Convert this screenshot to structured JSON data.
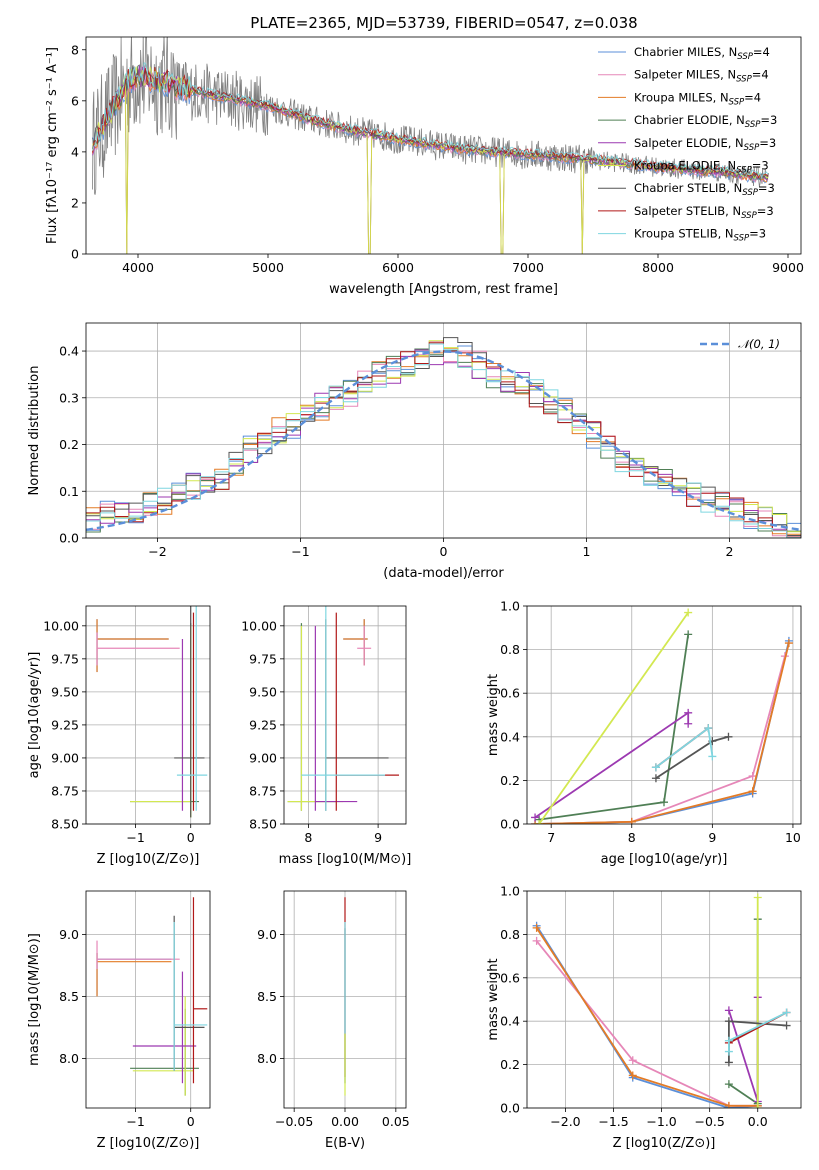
{
  "title": "PLATE=2365, MJD=53739, FIBERID=0547, z=0.038",
  "colors": {
    "chabrier_miles": "#5b8fd9",
    "salpeter_miles": "#e687b8",
    "kroupa_miles": "#e37b26",
    "chabrier_elodie": "#4f7f55",
    "salpeter_elodie": "#9c39b1",
    "kroupa_elodie": "#d3e851",
    "chabrier_stelib": "#555555",
    "salpeter_stelib": "#b01818",
    "kroupa_stelib": "#7fd6e0",
    "data": "#808080",
    "gauss": "#5b8fd9"
  },
  "legend": [
    {
      "key": "chabrier_miles",
      "text": "Chabrier MILES, N",
      "sub": "SSP",
      "suf": "=4"
    },
    {
      "key": "salpeter_miles",
      "text": "Salpeter MILES, N",
      "sub": "SSP",
      "suf": "=4"
    },
    {
      "key": "kroupa_miles",
      "text": "Kroupa MILES, N",
      "sub": "SSP",
      "suf": "=4"
    },
    {
      "key": "chabrier_elodie",
      "text": "Chabrier ELODIE, N",
      "sub": "SSP",
      "suf": "=3"
    },
    {
      "key": "salpeter_elodie",
      "text": "Salpeter ELODIE, N",
      "sub": "SSP",
      "suf": "=3"
    },
    {
      "key": "kroupa_elodie",
      "text": "Kroupa ELODIE, N",
      "sub": "SSP",
      "suf": "=3"
    },
    {
      "key": "chabrier_stelib",
      "text": "Chabrier STELIB, N",
      "sub": "SSP",
      "suf": "=3"
    },
    {
      "key": "salpeter_stelib",
      "text": "Salpeter STELIB, N",
      "sub": "SSP",
      "suf": "=3"
    },
    {
      "key": "kroupa_stelib",
      "text": "Kroupa STELIB, N",
      "sub": "SSP",
      "suf": "=3"
    }
  ],
  "chart_data": [
    {
      "id": "spectrum",
      "type": "line",
      "xlabel": "wavelength [Angstrom, rest frame]",
      "ylabel": "Flux [fλ10⁻¹⁷ erg cm⁻² s⁻¹ A⁻¹]",
      "xlim": [
        3600,
        9100
      ],
      "ylim": [
        0,
        8.5
      ],
      "xticks": [
        4000,
        5000,
        6000,
        7000,
        8000,
        9000
      ],
      "yticks": [
        0,
        2,
        4,
        6,
        8
      ],
      "continuum": [
        [
          3650,
          4.3
        ],
        [
          3800,
          5.6
        ],
        [
          3900,
          6.6
        ],
        [
          4000,
          7.0
        ],
        [
          4200,
          6.7
        ],
        [
          4500,
          6.3
        ],
        [
          4800,
          6.0
        ],
        [
          5000,
          5.8
        ],
        [
          5300,
          5.3
        ],
        [
          5600,
          4.9
        ],
        [
          6000,
          4.5
        ],
        [
          6500,
          4.1
        ],
        [
          7000,
          3.9
        ],
        [
          7500,
          3.7
        ],
        [
          8000,
          3.4
        ],
        [
          8500,
          3.2
        ],
        [
          8800,
          3.0
        ]
      ],
      "dropouts": [
        3910,
        5780,
        6800,
        7420
      ]
    },
    {
      "id": "residuals",
      "type": "step",
      "xlabel": "(data-model)/error",
      "ylabel": "Normed distribution",
      "xlim": [
        -2.5,
        2.5
      ],
      "ylim": [
        0,
        0.46
      ],
      "xticks": [
        -2,
        -1,
        0,
        1,
        2
      ],
      "yticks": [
        0,
        0.1,
        0.2,
        0.3,
        0.4
      ],
      "bin_width": 0.1,
      "hist": [
        0.04,
        0.05,
        0.06,
        0.06,
        0.07,
        0.08,
        0.09,
        0.11,
        0.12,
        0.13,
        0.16,
        0.19,
        0.21,
        0.23,
        0.24,
        0.26,
        0.28,
        0.3,
        0.31,
        0.33,
        0.35,
        0.36,
        0.37,
        0.39,
        0.4,
        0.4,
        0.39,
        0.37,
        0.35,
        0.34,
        0.33,
        0.31,
        0.29,
        0.27,
        0.25,
        0.22,
        0.19,
        0.17,
        0.15,
        0.13,
        0.12,
        0.1,
        0.09,
        0.08,
        0.07,
        0.06,
        0.05,
        0.04,
        0.03,
        0.02
      ],
      "legend": "𝒩(0, 1)"
    },
    {
      "id": "age_vs_Z",
      "type": "errorbar",
      "xlabel": "Z [log10(Z/Z⊙)]",
      "ylabel": "age  [log10(age/yr)]",
      "xlim": [
        -1.9,
        0.35
      ],
      "ylim": [
        8.5,
        10.15
      ],
      "xticks": [
        -1,
        0
      ],
      "yticks": [
        8.5,
        8.75,
        9.0,
        9.25,
        9.5,
        9.75,
        10.0
      ],
      "points": [
        {
          "key": "chabrier_miles",
          "x": -1.7,
          "xlo": -1.7,
          "xhi": -0.4,
          "y": 9.9,
          "ylo": 9.65,
          "yhi": 10.05
        },
        {
          "key": "kroupa_miles",
          "x": -1.7,
          "xlo": -1.7,
          "xhi": -0.4,
          "y": 9.9,
          "ylo": 9.65,
          "yhi": 10.05
        },
        {
          "key": "salpeter_miles",
          "x": -1.7,
          "xlo": -1.7,
          "xhi": -0.2,
          "y": 9.83,
          "ylo": 9.7,
          "yhi": 9.95
        },
        {
          "key": "chabrier_elodie",
          "x": 0.0,
          "xlo": -1.1,
          "xhi": 0.15,
          "y": 8.67,
          "ylo": 8.55,
          "yhi": 10.02
        },
        {
          "key": "kroupa_elodie",
          "x": 0.0,
          "xlo": -1.1,
          "xhi": 0.0,
          "y": 8.67,
          "ylo": 8.55,
          "yhi": 10.0
        },
        {
          "key": "salpeter_elodie",
          "x": -0.15,
          "xlo": -0.15,
          "xhi": -0.15,
          "y": 9.2,
          "ylo": 8.6,
          "yhi": 9.9
        },
        {
          "key": "chabrier_stelib",
          "x": 0.0,
          "xlo": -0.3,
          "xhi": 0.25,
          "y": 9.0,
          "ylo": 8.55,
          "yhi": 10.15
        },
        {
          "key": "salpeter_stelib",
          "x": 0.05,
          "xlo": 0.05,
          "xhi": 0.05,
          "y": 9.3,
          "ylo": 8.6,
          "yhi": 10.1
        },
        {
          "key": "kroupa_stelib",
          "x": 0.1,
          "xlo": -0.25,
          "xhi": 0.3,
          "y": 8.87,
          "ylo": 8.6,
          "yhi": 10.15
        }
      ]
    },
    {
      "id": "age_vs_mass",
      "type": "errorbar",
      "xlabel": "mass [log10(M/M⊙)]",
      "ylabel": "",
      "xlim": [
        7.65,
        9.4
      ],
      "ylim": [
        8.5,
        10.15
      ],
      "xticks": [
        8,
        9
      ],
      "yticks": [
        8.5,
        8.75,
        9.0,
        9.25,
        9.5,
        9.75,
        10.0
      ],
      "points": [
        {
          "key": "chabrier_miles",
          "x": 8.8,
          "xlo": 8.5,
          "xhi": 8.85,
          "y": 9.9,
          "ylo": 9.7,
          "yhi": 10.05
        },
        {
          "key": "kroupa_miles",
          "x": 8.8,
          "xlo": 8.5,
          "xhi": 8.85,
          "y": 9.9,
          "ylo": 9.7,
          "yhi": 10.05
        },
        {
          "key": "salpeter_miles",
          "x": 8.8,
          "xlo": 8.7,
          "xhi": 8.9,
          "y": 9.83,
          "ylo": 9.7,
          "yhi": 10.0
        },
        {
          "key": "chabrier_elodie",
          "x": 7.9,
          "xlo": 7.7,
          "xhi": 8.4,
          "y": 8.67,
          "ylo": 8.6,
          "yhi": 10.02
        },
        {
          "key": "kroupa_elodie",
          "x": 7.9,
          "xlo": 7.7,
          "xhi": 8.5,
          "y": 8.67,
          "ylo": 8.6,
          "yhi": 10.0
        },
        {
          "key": "salpeter_elodie",
          "x": 8.1,
          "xlo": 8.1,
          "xhi": 8.7,
          "y": 8.67,
          "ylo": 8.6,
          "yhi": 10.0
        },
        {
          "key": "chabrier_stelib",
          "x": 8.25,
          "xlo": 8.25,
          "xhi": 9.15,
          "y": 9.0,
          "ylo": 8.6,
          "yhi": 10.05
        },
        {
          "key": "salpeter_stelib",
          "x": 8.4,
          "xlo": 8.4,
          "xhi": 9.3,
          "y": 8.87,
          "ylo": 8.6,
          "yhi": 10.1
        },
        {
          "key": "kroupa_stelib",
          "x": 8.25,
          "xlo": 7.9,
          "xhi": 9.1,
          "y": 8.87,
          "ylo": 8.6,
          "yhi": 10.15
        }
      ]
    },
    {
      "id": "weight_vs_age",
      "type": "line",
      "xlabel": "age  [log10(age/yr)]",
      "ylabel": "mass weight",
      "xlim": [
        6.7,
        10.1
      ],
      "ylim": [
        0,
        1.0
      ],
      "xticks": [
        7,
        8,
        9,
        10
      ],
      "yticks": [
        0.0,
        0.2,
        0.4,
        0.6,
        0.8,
        1.0
      ],
      "series": [
        {
          "key": "chabrier_miles",
          "x": [
            6.8,
            8.0,
            9.5,
            9.95
          ],
          "y": [
            0.0,
            0.01,
            0.14,
            0.84
          ]
        },
        {
          "key": "salpeter_miles",
          "x": [
            6.8,
            8.0,
            9.5,
            9.9
          ],
          "y": [
            0.0,
            0.01,
            0.22,
            0.77
          ]
        },
        {
          "key": "kroupa_miles",
          "x": [
            6.8,
            8.0,
            9.5,
            9.95
          ],
          "y": [
            0.0,
            0.01,
            0.15,
            0.83
          ]
        },
        {
          "key": "chabrier_elodie",
          "x": [
            6.85,
            8.4,
            8.7
          ],
          "y": [
            0.02,
            0.1,
            0.87
          ]
        },
        {
          "key": "salpeter_elodie",
          "x": [
            6.8,
            8.7,
            8.7
          ],
          "y": [
            0.03,
            0.51,
            0.46
          ]
        },
        {
          "key": "kroupa_elodie",
          "x": [
            6.85,
            8.7
          ],
          "y": [
            0.0,
            0.97
          ]
        },
        {
          "key": "chabrier_stelib",
          "x": [
            8.3,
            9.0,
            9.2
          ],
          "y": [
            0.21,
            0.38,
            0.4
          ]
        },
        {
          "key": "salpeter_stelib",
          "x": [
            8.3,
            8.95
          ],
          "y": [
            0.26,
            0.44
          ]
        },
        {
          "key": "kroupa_stelib",
          "x": [
            8.3,
            8.95,
            9.0
          ],
          "y": [
            0.26,
            0.44,
            0.31
          ]
        }
      ]
    },
    {
      "id": "mass_vs_Z",
      "type": "errorbar",
      "xlabel": "Z [log10(Z/Z⊙)]",
      "ylabel": "mass [log10(M/M⊙)]",
      "xlim": [
        -1.9,
        0.35
      ],
      "ylim": [
        7.6,
        9.35
      ],
      "xticks": [
        -1,
        0
      ],
      "yticks": [
        8.0,
        8.5,
        9.0
      ],
      "points": [
        {
          "key": "chabrier_miles",
          "x": -1.7,
          "xlo": -1.7,
          "xhi": -0.35,
          "y": 8.8,
          "ylo": 8.5,
          "yhi": 8.85
        },
        {
          "key": "kroupa_miles",
          "x": -1.7,
          "xlo": -1.7,
          "xhi": -0.35,
          "y": 8.78,
          "ylo": 8.5,
          "yhi": 8.85
        },
        {
          "key": "salpeter_miles",
          "x": -1.7,
          "xlo": -1.7,
          "xhi": -0.2,
          "y": 8.8,
          "ylo": 8.72,
          "yhi": 8.95
        },
        {
          "key": "chabrier_elodie",
          "x": -0.1,
          "xlo": -1.1,
          "xhi": 0.15,
          "y": 7.92,
          "ylo": 7.7,
          "yhi": 8.4
        },
        {
          "key": "kroupa_elodie",
          "x": -0.1,
          "xlo": -1.05,
          "xhi": 0.05,
          "y": 7.9,
          "ylo": 7.7,
          "yhi": 8.5
        },
        {
          "key": "salpeter_elodie",
          "x": -0.15,
          "xlo": -1.05,
          "xhi": 0.1,
          "y": 8.1,
          "ylo": 7.8,
          "yhi": 8.7
        },
        {
          "key": "chabrier_stelib",
          "x": -0.3,
          "xlo": -0.3,
          "xhi": 0.25,
          "y": 8.25,
          "ylo": 7.9,
          "yhi": 9.15
        },
        {
          "key": "salpeter_stelib",
          "x": 0.05,
          "xlo": 0.05,
          "xhi": 0.3,
          "y": 8.4,
          "ylo": 7.8,
          "yhi": 9.3
        },
        {
          "key": "kroupa_stelib",
          "x": -0.3,
          "xlo": -0.3,
          "xhi": 0.3,
          "y": 8.27,
          "ylo": 7.9,
          "yhi": 9.1
        }
      ]
    },
    {
      "id": "mass_vs_ebv",
      "type": "errorbar",
      "xlabel": "E(B-V)",
      "ylabel": "",
      "xlim": [
        -0.06,
        0.06
      ],
      "ylim": [
        7.6,
        9.35
      ],
      "xticks": [
        -0.05,
        0.0,
        0.05
      ],
      "yticks": [
        8.0,
        8.5,
        9.0
      ],
      "points": [
        {
          "key": "salpeter_stelib",
          "x": 0.0,
          "xlo": 0.0,
          "xhi": 0.0,
          "y": 8.6,
          "ylo": 7.85,
          "yhi": 9.3
        },
        {
          "key": "chabrier_stelib",
          "x": 0.0,
          "xlo": 0.0,
          "xhi": 0.0,
          "y": 8.4,
          "ylo": 7.8,
          "yhi": 9.05
        },
        {
          "key": "kroupa_stelib",
          "x": 0.0,
          "xlo": 0.0,
          "xhi": 0.0,
          "y": 8.5,
          "ylo": 7.8,
          "yhi": 9.1
        },
        {
          "key": "kroupa_elodie",
          "x": 0.0,
          "xlo": 0.0,
          "xhi": 0.0,
          "y": 7.9,
          "ylo": 7.7,
          "yhi": 8.2
        }
      ]
    },
    {
      "id": "weight_vs_Z",
      "type": "line",
      "xlabel": "Z [log10(Z/Z⊙)]",
      "ylabel": "mass weight",
      "xlim": [
        -2.4,
        0.45
      ],
      "ylim": [
        0,
        1.0
      ],
      "xticks": [
        -2.0,
        -1.5,
        -1.0,
        -0.5,
        0.0
      ],
      "yticks": [
        0.0,
        0.2,
        0.4,
        0.6,
        0.8,
        1.0
      ],
      "series": [
        {
          "key": "chabrier_miles",
          "x": [
            -2.3,
            -1.3,
            -0.3,
            0.0
          ],
          "y": [
            0.84,
            0.14,
            0.0,
            0.01
          ]
        },
        {
          "key": "salpeter_miles",
          "x": [
            -2.3,
            -1.3,
            -0.3,
            0.0
          ],
          "y": [
            0.77,
            0.22,
            0.01,
            0.01
          ]
        },
        {
          "key": "kroupa_miles",
          "x": [
            -2.3,
            -1.3,
            -0.3,
            0.0
          ],
          "y": [
            0.83,
            0.15,
            0.01,
            0.01
          ]
        },
        {
          "key": "chabrier_elodie",
          "x": [
            -0.3,
            0.0,
            0.0
          ],
          "y": [
            0.11,
            0.02,
            0.87
          ]
        },
        {
          "key": "salpeter_elodie",
          "x": [
            -0.3,
            0.0,
            0.0
          ],
          "y": [
            0.45,
            0.03,
            0.51
          ]
        },
        {
          "key": "kroupa_elodie",
          "x": [
            0.0,
            0.0
          ],
          "y": [
            0.0,
            0.97
          ]
        },
        {
          "key": "chabrier_stelib",
          "x": [
            -0.3,
            -0.3,
            0.3
          ],
          "y": [
            0.21,
            0.4,
            0.38
          ]
        },
        {
          "key": "salpeter_stelib",
          "x": [
            -0.3,
            0.3
          ],
          "y": [
            0.3,
            0.44
          ]
        },
        {
          "key": "kroupa_stelib",
          "x": [
            -0.3,
            -0.3,
            0.3
          ],
          "y": [
            0.26,
            0.31,
            0.44
          ]
        }
      ]
    }
  ]
}
